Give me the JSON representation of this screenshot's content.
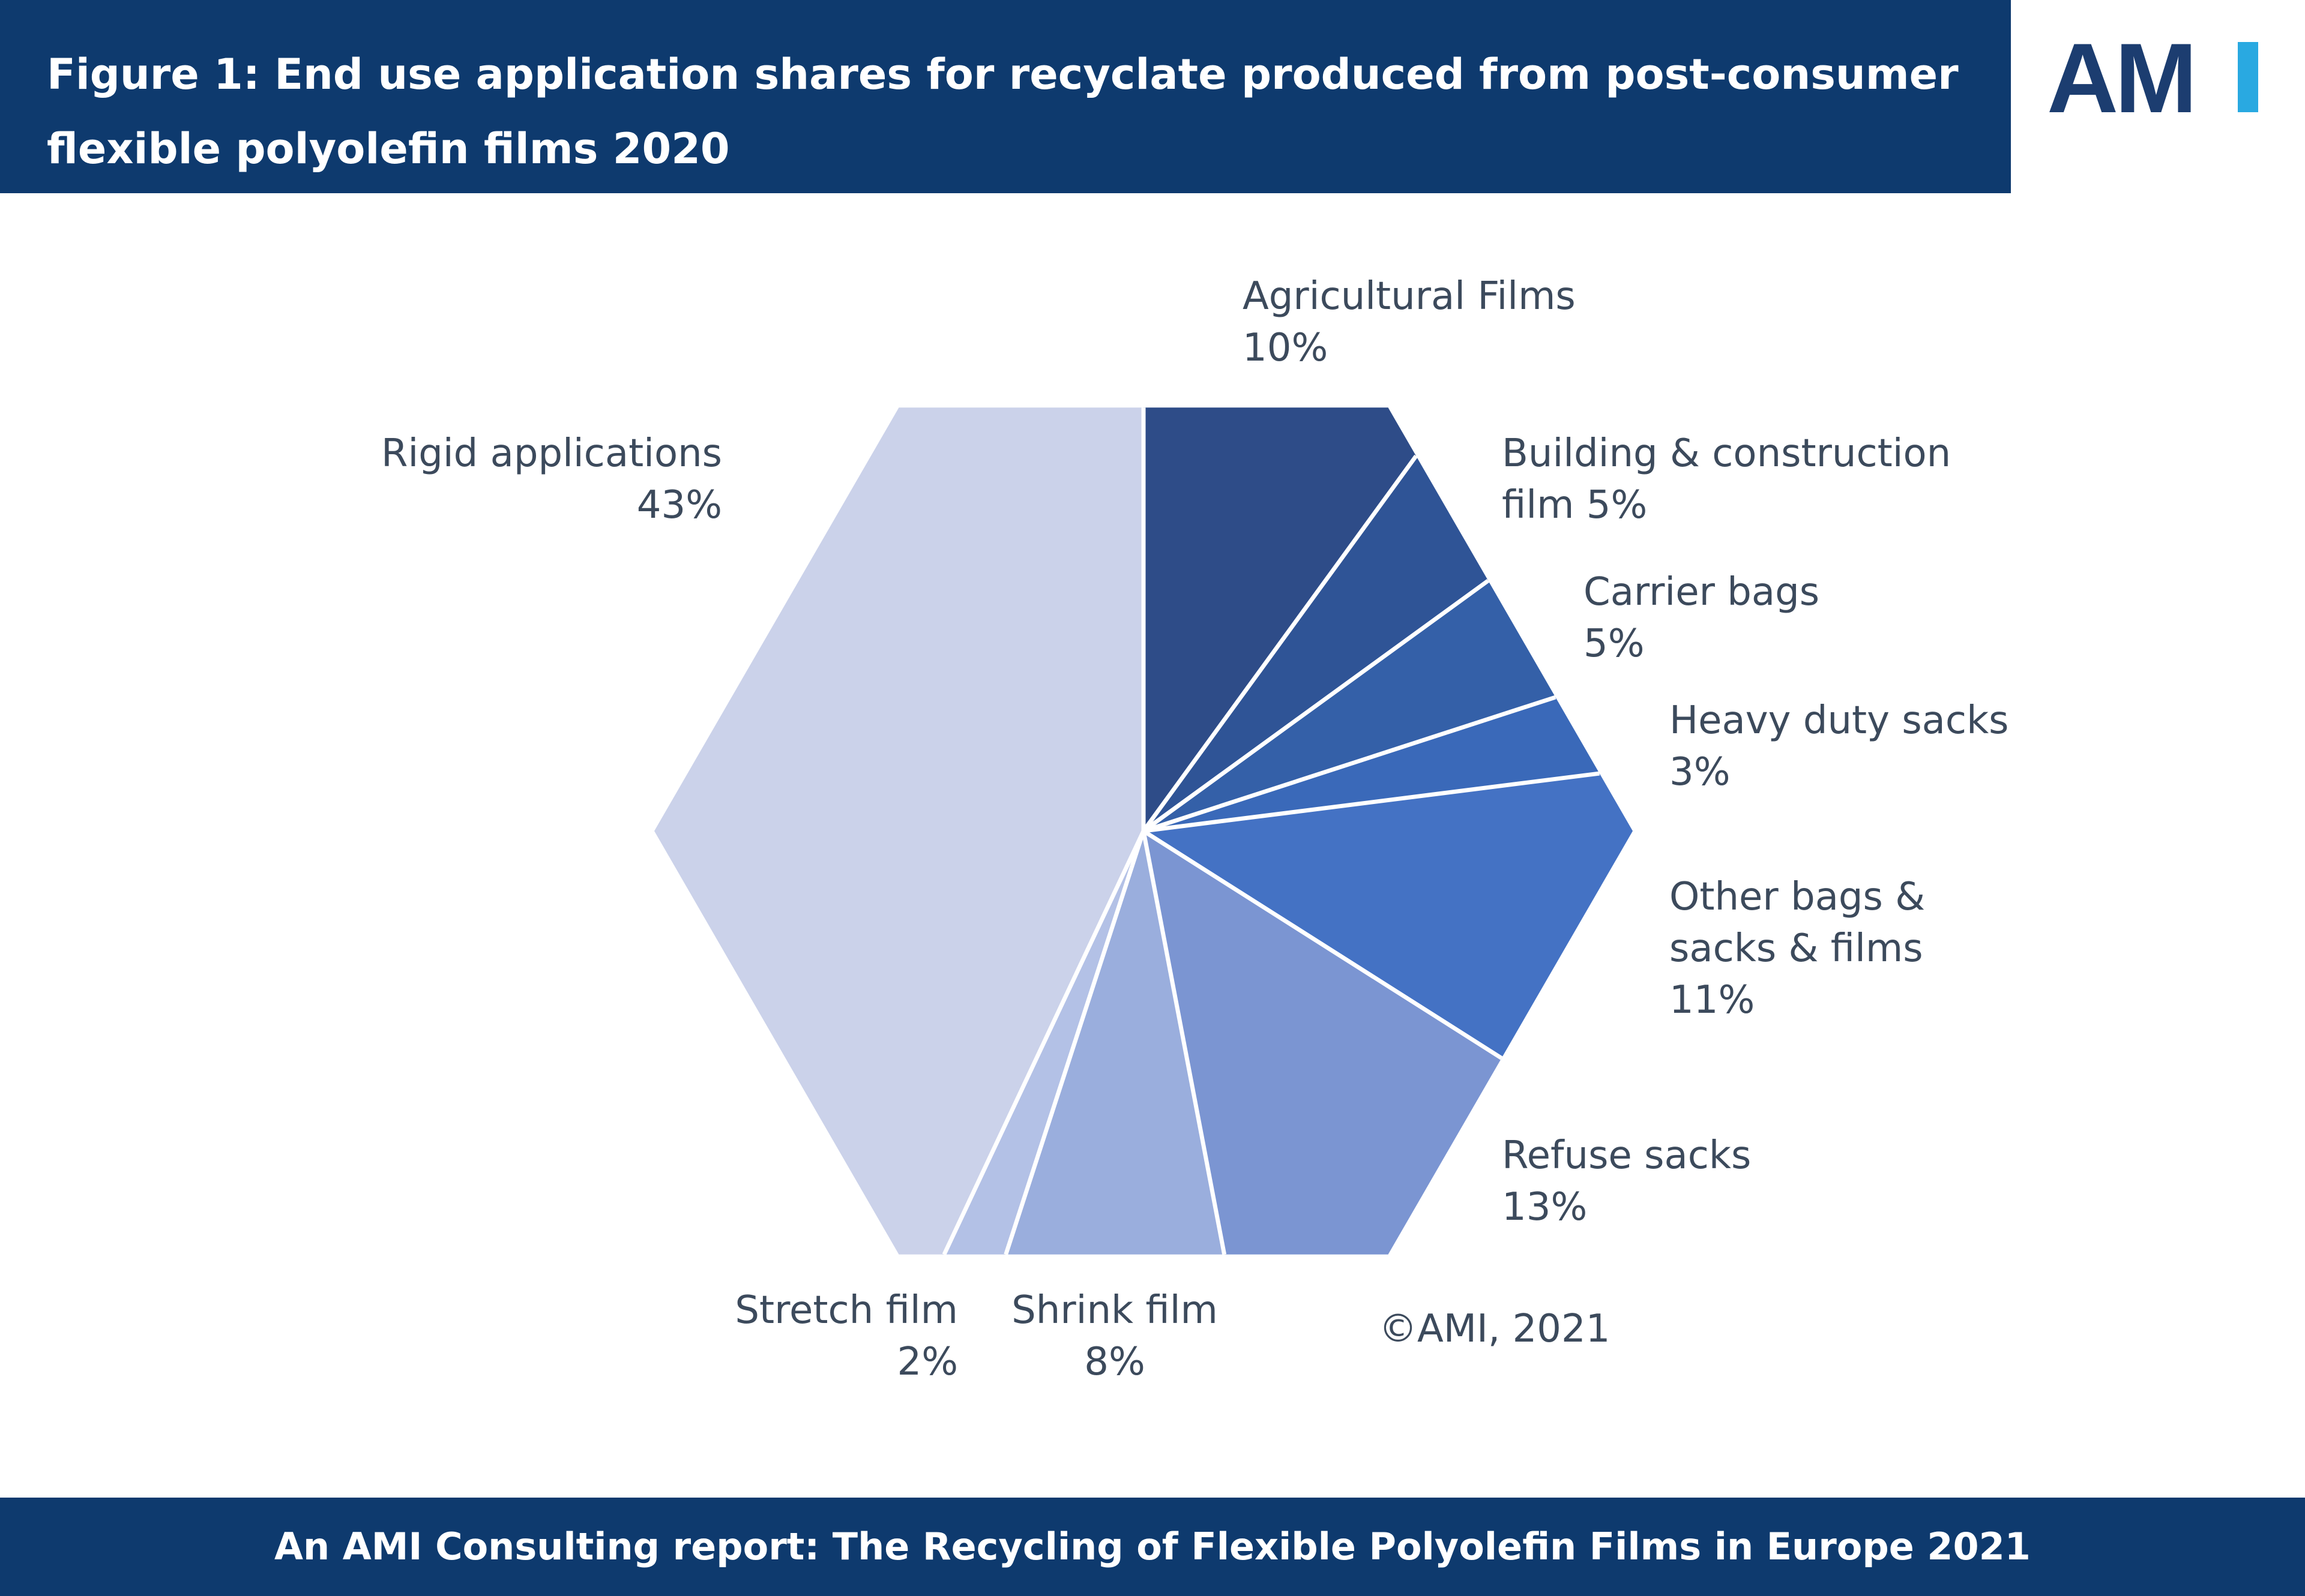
{
  "header": {
    "title": "Figure 1: End use application shares for recyclate produced from post-consumer flexible polyolefin films 2020"
  },
  "logo": {
    "text": "AMI",
    "color_dark": "#1c3d70",
    "color_accent": "#29a9e1"
  },
  "copyright": "©AMI, 2021",
  "footer": {
    "text": "An AMI Consulting  report: The Recycling of Flexible Polyolefin Films in Europe 2021"
  },
  "chart_data": {
    "type": "pie",
    "shape": "hexagon",
    "unit": "%",
    "slices": [
      {
        "label": "Agricultural Films",
        "value": 10,
        "value_label": "10%",
        "color": "#2e4c88"
      },
      {
        "label": "Building & construction film",
        "value": 5,
        "value_label": "5%",
        "color": "#2f5496"
      },
      {
        "label": "Carrier bags",
        "value": 5,
        "value_label": "5%",
        "color": "#3460a8"
      },
      {
        "label": "Heavy duty sacks",
        "value": 3,
        "value_label": "3%",
        "color": "#3a69b9"
      },
      {
        "label": "Other bags & sacks & films",
        "value": 11,
        "value_label": "11%",
        "color": "#4472c4"
      },
      {
        "label": "Refuse sacks",
        "value": 13,
        "value_label": "13%",
        "color": "#7b95d2"
      },
      {
        "label": "Shrink film",
        "value": 8,
        "value_label": "8%",
        "color": "#9aaedd"
      },
      {
        "label": "Stretch film",
        "value": 2,
        "value_label": "2%",
        "color": "#b3c1e6"
      },
      {
        "label": "Rigid applications",
        "value": 43,
        "value_label": "43%",
        "color": "#cbd2ea"
      }
    ]
  }
}
